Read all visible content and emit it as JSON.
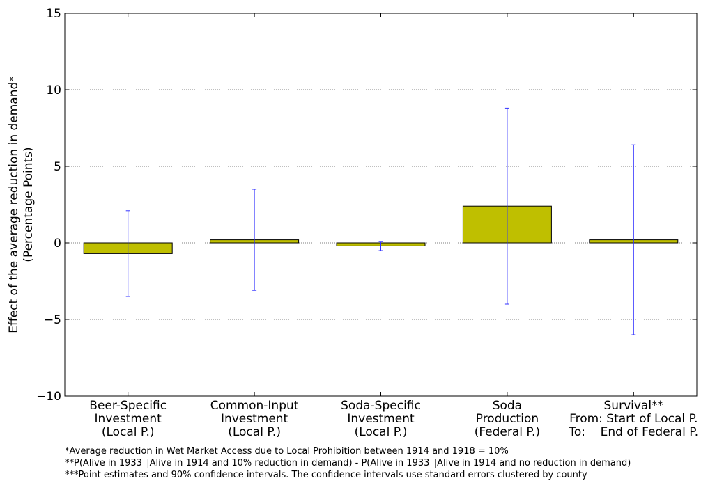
{
  "chart_data": {
    "type": "bar",
    "title": "",
    "xlabel": "",
    "ylabel": "Effect of the average reduction in demand*",
    "ylabel_sub": "(Percentage Points)",
    "ylim": [
      -10,
      15
    ],
    "yticks": [
      -10,
      -5,
      0,
      5,
      10,
      15
    ],
    "ytick_labels": [
      "−10",
      "−5",
      "0",
      "5",
      "10",
      "15"
    ],
    "grid": "horizontal dotted",
    "bar_color": "#bfbf00",
    "errorbar_color": "#3333ff",
    "categories": [
      {
        "lines": [
          "Beer-Specific",
          "Investment",
          "(Local P.)"
        ]
      },
      {
        "lines": [
          "Common-Input",
          "Investment",
          "(Local P.)"
        ]
      },
      {
        "lines": [
          "Soda-Specific",
          "Investment",
          "(Local P.)"
        ]
      },
      {
        "lines": [
          "Soda",
          "Production",
          "(Federal P.)"
        ]
      },
      {
        "lines": [
          "Survival**",
          "From: Start of Local P.",
          "To:    End of Federal P."
        ]
      }
    ],
    "values": [
      -0.7,
      0.2,
      -0.2,
      2.4,
      0.2
    ],
    "ci_low": [
      -3.5,
      -3.1,
      -0.5,
      -4.0,
      -6.0
    ],
    "ci_high": [
      2.1,
      3.5,
      0.1,
      8.8,
      6.4
    ]
  },
  "footnotes": [
    "*Average reduction in Wet Market Access due to Local Prohibition between 1914 and 1918 = 10%",
    "**P(Alive in 1933  |Alive in 1914 and 10% reduction in demand) - P(Alive in 1933  |Alive in 1914 and no reduction in demand)",
    "***Point estimates and 90% confidence intervals. The confidence intervals use standard errors clustered by county"
  ]
}
